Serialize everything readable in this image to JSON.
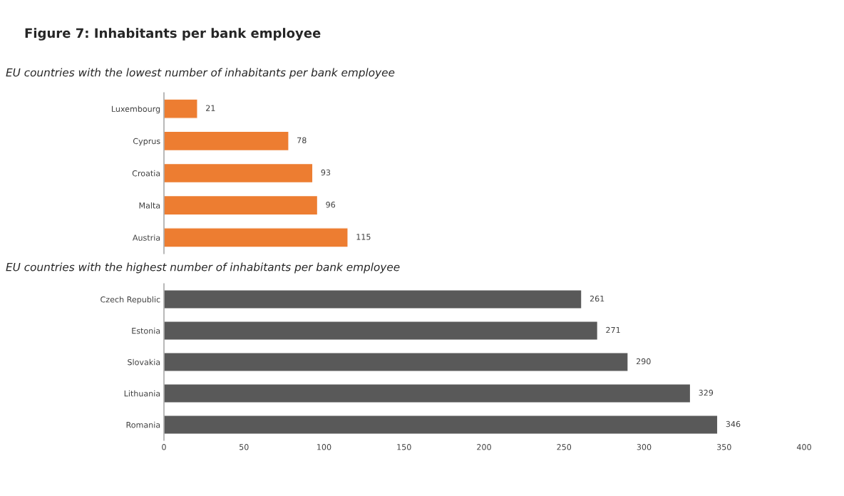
{
  "chart_data": [
    {
      "type": "bar",
      "orientation": "horizontal",
      "title": "Figure 7: Inhabitants per bank employee",
      "subtitle": "EU countries with the lowest number of inhabitants per bank employee",
      "categories": [
        "Luxembourg",
        "Cyprus",
        "Croatia",
        "Malta",
        "Austria"
      ],
      "values": [
        21,
        78,
        93,
        96,
        115
      ],
      "color": "#ed7d31",
      "xlim": [
        0,
        400
      ],
      "tick_labels": "y",
      "data_labels": true,
      "grid": false
    },
    {
      "type": "bar",
      "orientation": "horizontal",
      "title": "EU countries with the highest number of inhabitants per bank employee",
      "categories": [
        "Czech Republic",
        "Estonia",
        "Slovakia",
        "Lithuania",
        "Romania"
      ],
      "values": [
        261,
        271,
        290,
        329,
        346
      ],
      "color": "#595959",
      "xlim": [
        0,
        400
      ],
      "xticks": [
        0,
        50,
        100,
        150,
        200,
        250,
        300,
        350,
        400
      ],
      "data_labels": true,
      "grid": false
    }
  ]
}
